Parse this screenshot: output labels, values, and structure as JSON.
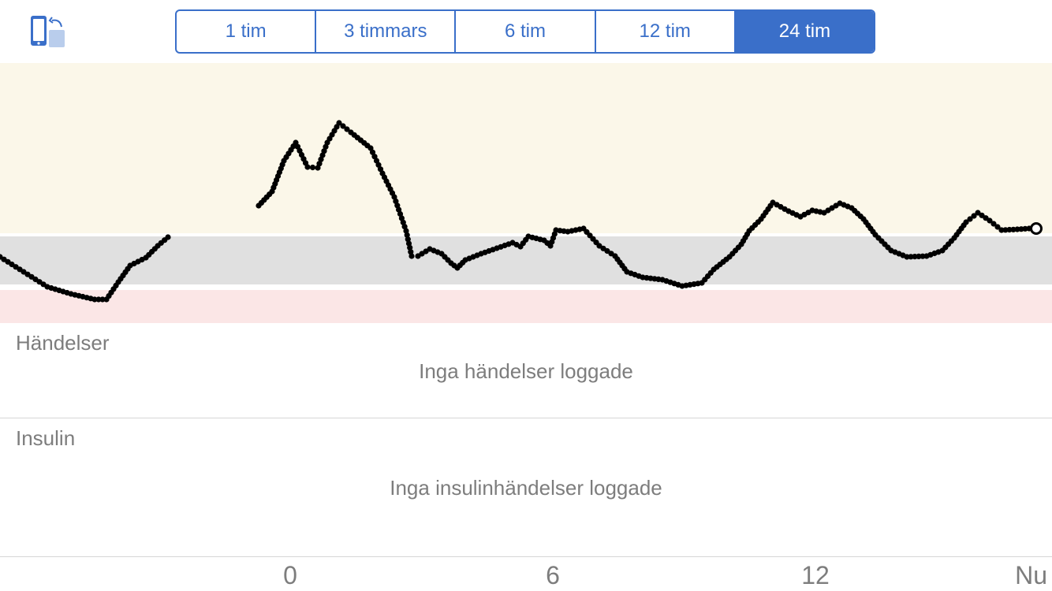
{
  "toolbar": {
    "rotate_icon": "rotate-device-icon",
    "accent_color": "#3a6fc9",
    "ranges": [
      {
        "label": "1 tim",
        "selected": false
      },
      {
        "label": "3 timmars",
        "selected": false
      },
      {
        "label": "6 tim",
        "selected": false
      },
      {
        "label": "12 tim",
        "selected": false
      },
      {
        "label": "24 tim",
        "selected": true
      }
    ]
  },
  "glucose_chart": {
    "zones": [
      {
        "name": "high",
        "color": "#fbf7e9"
      },
      {
        "name": "target",
        "color": "#e0e0e0"
      },
      {
        "name": "low",
        "color": "#fbe6e6"
      }
    ],
    "x_ticks": [
      "0",
      "6",
      "12",
      "Nu"
    ]
  },
  "events": {
    "title": "Händelser",
    "empty_text": "Inga händelser loggade"
  },
  "insulin": {
    "title": "Insulin",
    "empty_text": "Inga insulinhändelser loggade"
  }
}
